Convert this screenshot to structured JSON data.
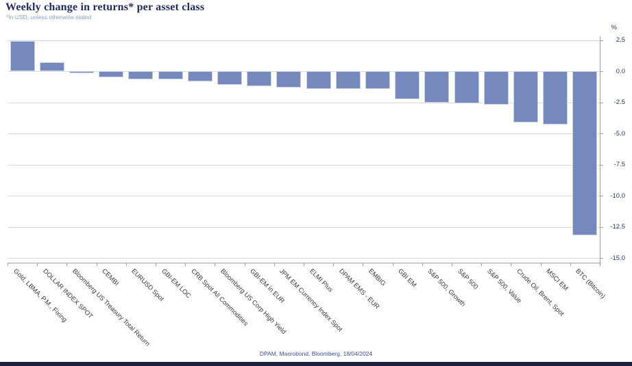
{
  "header": {
    "title": "Weekly change in returns* per asset class",
    "subtitle": "*In USD, unless otherwise stated"
  },
  "footer": {
    "source": "DPAM, Macrobond, Bloomberg, 18/04/2024"
  },
  "chart_data": {
    "type": "bar",
    "title": "Weekly change in returns* per asset class",
    "unit_label": "%",
    "categories": [
      "Gold, LBMA, P.M., Fixing",
      "DOLLAR INDEX SPOT",
      "Bloomberg US Treasury Total Return",
      "CEMBI",
      "EURUSD Spot",
      "GBI-EM LOC",
      "CRB Spot All Commodities",
      "Bloomberg US Corp High Yield",
      "GBI-EM in EUR",
      "JPM EM Currency Index Spot",
      "ELMI Plus",
      "DPAM EMS - EUR",
      "EMBIG",
      "GBI EM",
      "S&P 500, Growth",
      "S&P 500",
      "S&P 500, Value",
      "Crude Oil, Brent, Spot",
      "MSCI EM",
      "BTC (Bitcoin)"
    ],
    "values": [
      2.4,
      0.7,
      -0.15,
      -0.5,
      -0.65,
      -0.65,
      -0.8,
      -1.1,
      -1.2,
      -1.3,
      -1.4,
      -1.4,
      -1.4,
      -2.25,
      -2.55,
      -2.6,
      -2.7,
      -4.1,
      -4.3,
      -13.2
    ],
    "ylabel": "%",
    "yticks": [
      2.5,
      0.0,
      -2.5,
      -5.0,
      -7.5,
      -10.0,
      -12.5,
      -15.0
    ],
    "ylim": [
      -15.5,
      3.0
    ],
    "grid": true,
    "y_axis_position": "right",
    "x_label_rotation_deg": 45
  },
  "colors": {
    "title_text": "#1F2C66",
    "subtitle_text": "#7FA3D0",
    "bar_fill": "#7589BD",
    "bar_border": "#CCD3E8",
    "gridline": "#D9D9D9",
    "axis_line": "#A0A0A0",
    "y_tick_label": "#28366E",
    "category_label": "#3A3A3A",
    "footer_text": "#3B4EA3",
    "bottom_bar": "#1C2340"
  }
}
